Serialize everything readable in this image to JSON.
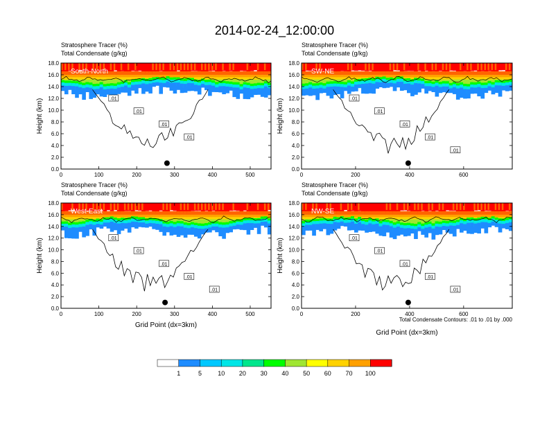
{
  "title": "2014-02-24_12:00:00",
  "footnote": "Total Condensate Contours: .01 to .01 by .000",
  "colorbar": {
    "levels": [
      "1",
      "5",
      "10",
      "20",
      "30",
      "40",
      "50",
      "60",
      "70",
      "100"
    ],
    "colors": [
      "#ffffff",
      "#1e8cff",
      "#00c8ff",
      "#00e6e6",
      "#00e68c",
      "#00ff00",
      "#a0e632",
      "#ffff00",
      "#ffd200",
      "#ffa000",
      "#ff6400",
      "#ff0000"
    ]
  },
  "chart_data": [
    {
      "type": "heatmap",
      "label": "South-North",
      "subtitle1": "Stratosphere Tracer   (%)",
      "subtitle2": "Total Condensate   (g/kg)",
      "ylabel": "Height (km)",
      "xlabel": "",
      "xlim": [
        0,
        555
      ],
      "ylim": [
        0,
        18
      ],
      "xticks": [
        "0",
        "100",
        "200",
        "300",
        "400",
        "500"
      ],
      "yticks": [
        "0.0",
        "2.0",
        "4.0",
        "6.0",
        "8.0",
        "10.0",
        "12.0",
        "14.0",
        "16.0",
        "18.0"
      ],
      "contour_labels": [
        ".01",
        ".01",
        ".01",
        ".01"
      ],
      "marker": {
        "x": 280,
        "y": 1.0
      }
    },
    {
      "type": "heatmap",
      "label": "SW-NE",
      "subtitle1": "Stratosphere Tracer   (%)",
      "subtitle2": "Total Condensate   (g/kg)",
      "ylabel": "Height (km)",
      "xlabel": "",
      "xlim": [
        0,
        780
      ],
      "ylim": [
        0,
        18
      ],
      "xticks": [
        "0",
        "200",
        "400",
        "600"
      ],
      "yticks": [
        "0.0",
        "2.0",
        "4.0",
        "6.0",
        "8.0",
        "10.0",
        "12.0",
        "14.0",
        "16.0",
        "18.0"
      ],
      "contour_labels": [
        ".01",
        ".01",
        ".01",
        ".01",
        ".01"
      ],
      "marker": {
        "x": 395,
        "y": 1.0
      }
    },
    {
      "type": "heatmap",
      "label": "West-East",
      "subtitle1": "Stratosphere Tracer   (%)",
      "subtitle2": "Total Condensate   (g/kg)",
      "ylabel": "Height (km)",
      "xlabel": "Grid Point (dx=3km)",
      "xlim": [
        0,
        555
      ],
      "ylim": [
        0,
        18
      ],
      "xticks": [
        "0",
        "100",
        "200",
        "300",
        "400",
        "500"
      ],
      "yticks": [
        "0.0",
        "2.0",
        "4.0",
        "6.0",
        "8.0",
        "10.0",
        "12.0",
        "14.0",
        "16.0",
        "18.0"
      ],
      "contour_labels": [
        ".01",
        ".01",
        ".01",
        ".01",
        ".01"
      ],
      "marker": {
        "x": 275,
        "y": 1.0
      }
    },
    {
      "type": "heatmap",
      "label": "NW-SE",
      "subtitle1": "Stratosphere Tracer   (%)",
      "subtitle2": "Total Condensate   (g/kg)",
      "ylabel": "Height (km)",
      "xlabel": "Grid Point (dx=3km)",
      "xlim": [
        0,
        780
      ],
      "ylim": [
        0,
        18
      ],
      "xticks": [
        "0",
        "200",
        "400",
        "600"
      ],
      "yticks": [
        "0.0",
        "2.0",
        "4.0",
        "6.0",
        "8.0",
        "10.0",
        "12.0",
        "14.0",
        "16.0",
        "18.0"
      ],
      "contour_labels": [
        ".01",
        ".01",
        ".01",
        ".01",
        ".01"
      ],
      "marker": {
        "x": 395,
        "y": 1.0
      }
    }
  ]
}
